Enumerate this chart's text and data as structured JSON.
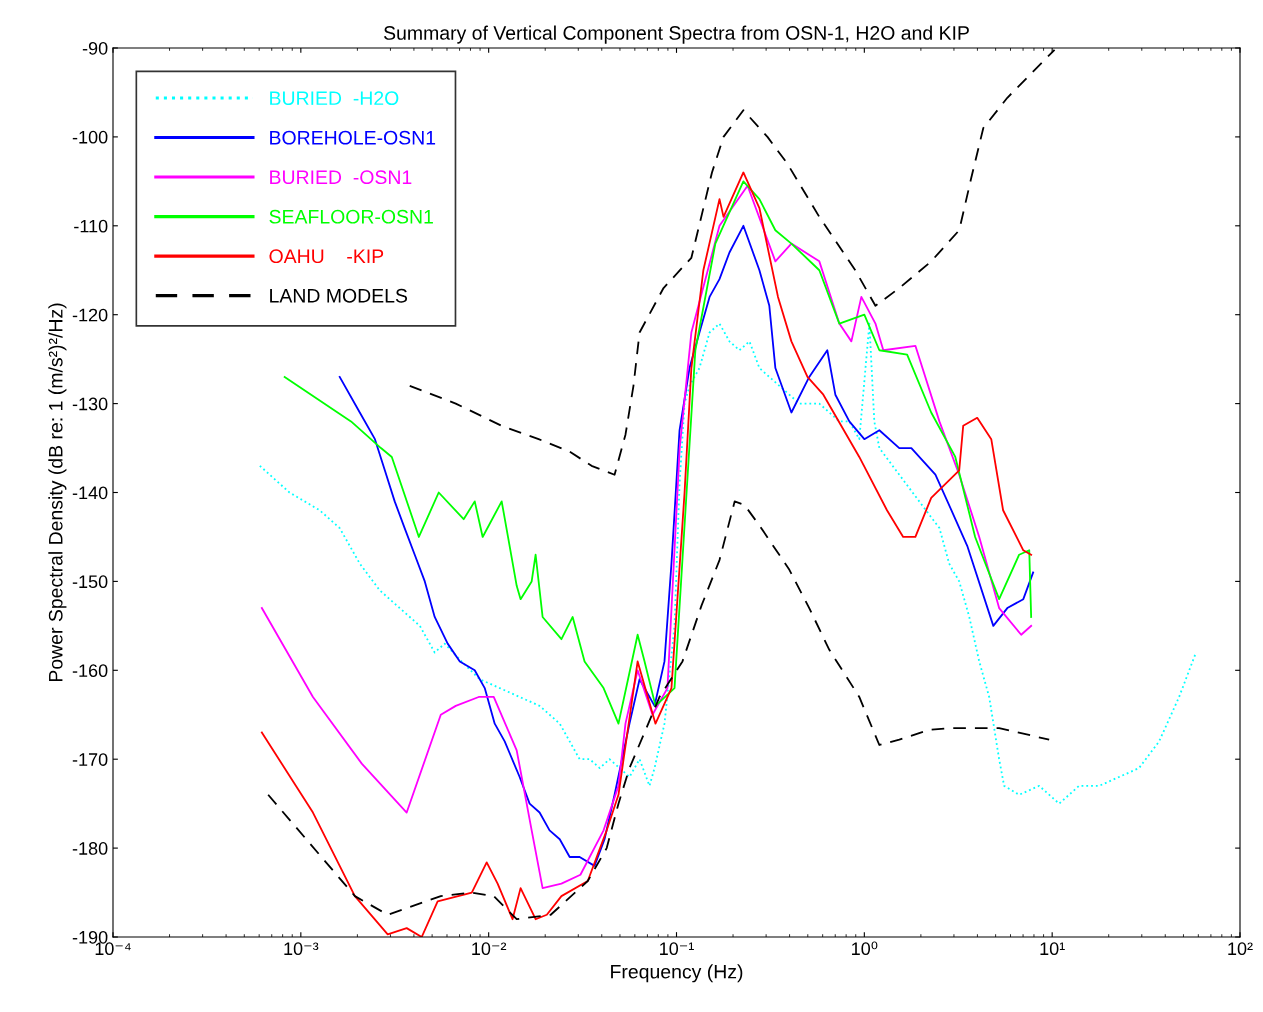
{
  "chart_data": {
    "type": "line",
    "title": "Summary of Vertical Component Spectra from OSN-1, H2O and KIP",
    "xlabel": "Frequency (Hz)",
    "ylabel": "Power Spectral Density (dB re: 1 (m/s²)²/Hz)",
    "log": "x",
    "xlim": [
      0.0001,
      100
    ],
    "ylim": [
      -190,
      -90
    ],
    "xticks": [
      {
        "value": 0.0001,
        "label": "10⁻⁴"
      },
      {
        "value": 0.001,
        "label": "10⁻³"
      },
      {
        "value": 0.01,
        "label": "10⁻²"
      },
      {
        "value": 0.1,
        "label": "10⁻¹"
      },
      {
        "value": 1,
        "label": "10⁰"
      },
      {
        "value": 10,
        "label": "10¹"
      },
      {
        "value": 100,
        "label": "10²"
      }
    ],
    "yticks": [
      -190,
      -180,
      -170,
      -160,
      -150,
      -140,
      -130,
      -120,
      -110,
      -100,
      -90
    ],
    "grid": false,
    "legend": "top left",
    "series": [
      {
        "name": "BURIED  -H2O",
        "color": "#00ffff",
        "line_style": "dotted",
        "x": [
          0.000605,
          0.00087,
          0.00126,
          0.00161,
          0.00206,
          0.00263,
          0.00336,
          0.0043,
          0.00516,
          0.00583,
          0.00718,
          0.00895,
          0.01145,
          0.01462,
          0.01867,
          0.0239,
          0.027,
          0.0305,
          0.0345,
          0.039,
          0.044,
          0.0498,
          0.0562,
          0.0636,
          0.0718,
          0.0764,
          0.0863,
          0.0976,
          0.1038,
          0.1104,
          0.1173,
          0.1325,
          0.15,
          0.1694,
          0.1914,
          0.2163,
          0.2445,
          0.2763,
          0.312,
          0.353,
          0.399,
          0.451,
          0.509,
          0.576,
          0.651,
          0.736,
          0.832,
          0.94,
          1.064,
          1.13,
          1.202,
          1.535,
          1.96,
          2.51,
          2.83,
          3.2,
          3.62,
          4.09,
          4.62,
          5.22,
          5.55,
          6.67,
          8.53,
          10.9,
          13.9,
          17.8,
          22.7,
          29.0,
          37.1,
          47.4,
          58.3
        ],
        "values": [
          -137,
          -140,
          -142,
          -144,
          -148,
          -151,
          -153,
          -155,
          -158,
          -157,
          -159,
          -161,
          -162,
          -163,
          -164,
          -166,
          -168,
          -170,
          -170,
          -171,
          -170,
          -171,
          -172,
          -170,
          -173,
          -171,
          -166,
          -155,
          -139,
          -130,
          -128,
          -126,
          -122,
          -121,
          -123,
          -124,
          -123,
          -126,
          -127,
          -128,
          -129,
          -130,
          -130,
          -130,
          -131,
          -132,
          -132,
          -134,
          -121,
          -132,
          -135,
          -138,
          -141,
          -144,
          -148,
          -150,
          -154,
          -159,
          -163,
          -170,
          -173,
          -174,
          -173,
          -175,
          -173,
          -173,
          -172,
          -171,
          -168,
          -163,
          -158
        ]
      },
      {
        "name": "BOREHOLE-OSN1",
        "color": "#0000ff",
        "line_style": "solid",
        "x": [
          0.00161,
          0.00206,
          0.00248,
          0.0028,
          0.00316,
          0.00357,
          0.00404,
          0.00457,
          0.00516,
          0.00605,
          0.00702,
          0.00843,
          0.00953,
          0.01077,
          0.01217,
          0.01462,
          0.01652,
          0.01867,
          0.0211,
          0.0239,
          0.027,
          0.0305,
          0.0366,
          0.0414,
          0.0468,
          0.0562,
          0.0636,
          0.0764,
          0.0863,
          0.094,
          0.1038,
          0.1173,
          0.1325,
          0.15,
          0.1694,
          0.1914,
          0.227,
          0.2763,
          0.312,
          0.336,
          0.409,
          0.509,
          0.635,
          0.701,
          0.832,
          1.0,
          1.202,
          1.535,
          1.78,
          2.39,
          2.91,
          3.53,
          4.86,
          5.77,
          7.02,
          7.92
        ],
        "values": [
          -127,
          -131,
          -134,
          -137.5,
          -141,
          -144,
          -147,
          -150,
          -154,
          -157,
          -159,
          -160,
          -162,
          -166,
          -168,
          -172,
          -175,
          -176,
          -178,
          -179,
          -181,
          -181,
          -182,
          -179,
          -174,
          -166,
          -161,
          -164,
          -159,
          -148,
          -133,
          -126,
          -122,
          -118,
          -116,
          -113,
          -110,
          -115,
          -119,
          -126,
          -131,
          -127,
          -124,
          -129,
          -132,
          -134,
          -133,
          -135,
          -135,
          -138,
          -142,
          -146,
          -155,
          -153,
          -152,
          -149
        ]
      },
      {
        "name": "BURIED  -OSN1",
        "color": "#ff00ff",
        "line_style": "solid",
        "x": [
          0.00062,
          0.00116,
          0.00211,
          0.00366,
          0.00556,
          0.00668,
          0.00885,
          0.01064,
          0.0141,
          0.01694,
          0.01937,
          0.0244,
          0.0308,
          0.0409,
          0.0491,
          0.0535,
          0.0621,
          0.0745,
          0.0895,
          0.104,
          0.12,
          0.1694,
          0.239,
          0.336,
          0.409,
          0.576,
          0.736,
          0.853,
          0.964,
          1.146,
          1.262,
          1.87,
          2.51,
          3.2,
          4.09,
          5.22,
          6.84,
          7.73
        ],
        "values": [
          -153,
          -163,
          -170.5,
          -176,
          -165,
          -164,
          -163,
          -163,
          -169,
          -178,
          -184.5,
          -184,
          -183,
          -178,
          -173,
          -166,
          -160,
          -165,
          -162,
          -135,
          -122,
          -110,
          -105.5,
          -114,
          -112,
          -114,
          -121,
          -123,
          -118,
          -121,
          -124,
          -123.5,
          -132,
          -138,
          -145,
          -153,
          -156,
          -155
        ]
      },
      {
        "name": "SEAFLOOR-OSN1",
        "color": "#00ff00",
        "line_style": "solid",
        "x": [
          0.00082,
          0.00185,
          0.00267,
          0.00305,
          0.00425,
          0.00542,
          0.00736,
          0.00843,
          0.00929,
          0.01173,
          0.0141,
          0.01479,
          0.01694,
          0.01778,
          0.01937,
          0.0244,
          0.028,
          0.0324,
          0.0409,
          0.0491,
          0.0621,
          0.0676,
          0.0773,
          0.0976,
          0.126,
          0.161,
          0.227,
          0.2763,
          0.336,
          0.409,
          0.576,
          0.736,
          1.0,
          1.202,
          1.69,
          2.27,
          3.05,
          3.89,
          5.22,
          6.67,
          7.55,
          7.73
        ],
        "values": [
          -127,
          -132,
          -135,
          -136,
          -145,
          -140,
          -143,
          -141,
          -145,
          -141,
          -150.5,
          -152,
          -150,
          -147,
          -154,
          -156.5,
          -154,
          -159,
          -162,
          -166,
          -156,
          -159,
          -164,
          -162,
          -124,
          -112,
          -105,
          -107,
          -110.5,
          -112,
          -115,
          -121,
          -120,
          -124,
          -124.5,
          -131,
          -136,
          -145,
          -152,
          -147,
          -146.5,
          -154
        ]
      },
      {
        "name": "OAHU    -KIP",
        "color": "#ff0000",
        "line_style": "solid",
        "x": [
          0.00062,
          0.00116,
          0.00194,
          0.0029,
          0.00366,
          0.0044,
          0.00535,
          0.00813,
          0.00976,
          0.01116,
          0.0134,
          0.01479,
          0.01778,
          0.0204,
          0.0244,
          0.0337,
          0.0425,
          0.0491,
          0.0621,
          0.0773,
          0.094,
          0.1104,
          0.12,
          0.139,
          0.1694,
          0.178,
          0.227,
          0.2763,
          0.347,
          0.409,
          0.498,
          0.605,
          0.94,
          1.32,
          1.61,
          1.87,
          2.27,
          3.2,
          3.36,
          3.99,
          4.74,
          5.48,
          7.02,
          7.73
        ],
        "values": [
          -167,
          -176,
          -185.4,
          -189.7,
          -189,
          -190,
          -186,
          -185,
          -181.6,
          -184,
          -188,
          -184.5,
          -188,
          -187.5,
          -185.4,
          -183.7,
          -178,
          -174,
          -159,
          -166,
          -162,
          -140,
          -126,
          -115,
          -107,
          -109,
          -104,
          -108,
          -118,
          -123,
          -127,
          -129,
          -136,
          -142,
          -145,
          -145,
          -140.6,
          -137.5,
          -132.5,
          -131.6,
          -134,
          -142,
          -146.5,
          -147
        ]
      },
      {
        "name": "LAND MODELS",
        "color": "#000000",
        "line_style": "dashed",
        "x": [
          0.0038,
          0.00668,
          0.01173,
          0.01845,
          0.027,
          0.0353,
          0.0468,
          0.0535,
          0.059,
          0.0636,
          0.0853,
          0.12,
          0.1545,
          0.178,
          0.227,
          0.305,
          0.389,
          0.576,
          0.895,
          1.146,
          1.535,
          2.27,
          3.2,
          3.71,
          4.3,
          5.77,
          10.3
        ],
        "values": [
          -128,
          -130,
          -132.5,
          -134,
          -135.4,
          -137,
          -138,
          -133.5,
          -128,
          -122,
          -117,
          -113.6,
          -104,
          -100,
          -97,
          -100,
          -103,
          -109,
          -115,
          -119,
          -117,
          -114,
          -110.5,
          -104.6,
          -99,
          -95.6,
          -90.2
        ]
      },
      {
        "color": "#000000",
        "line_style": "dashed",
        "x": [
          0.00067,
          0.00194,
          0.0029,
          0.00556,
          0.00813,
          0.01064,
          0.0141,
          0.0214,
          0.0337,
          0.0425,
          0.0491,
          0.0562,
          0.0812,
          0.1076,
          0.136,
          0.1694,
          0.204,
          0.23,
          0.2763,
          0.399,
          0.509,
          0.651,
          0.94,
          1.202,
          1.535,
          2.22,
          2.83,
          5.22,
          9.64
        ],
        "values": [
          -174,
          -185.4,
          -187.5,
          -185.4,
          -185,
          -185.4,
          -188,
          -187.5,
          -183.7,
          -180,
          -175,
          -171,
          -163,
          -159,
          -152.7,
          -147.6,
          -141,
          -141.4,
          -143.7,
          -148.7,
          -153,
          -157.7,
          -163,
          -168.4,
          -167.8,
          -166.7,
          -166.5,
          -166.5,
          -167.8
        ]
      }
    ]
  }
}
